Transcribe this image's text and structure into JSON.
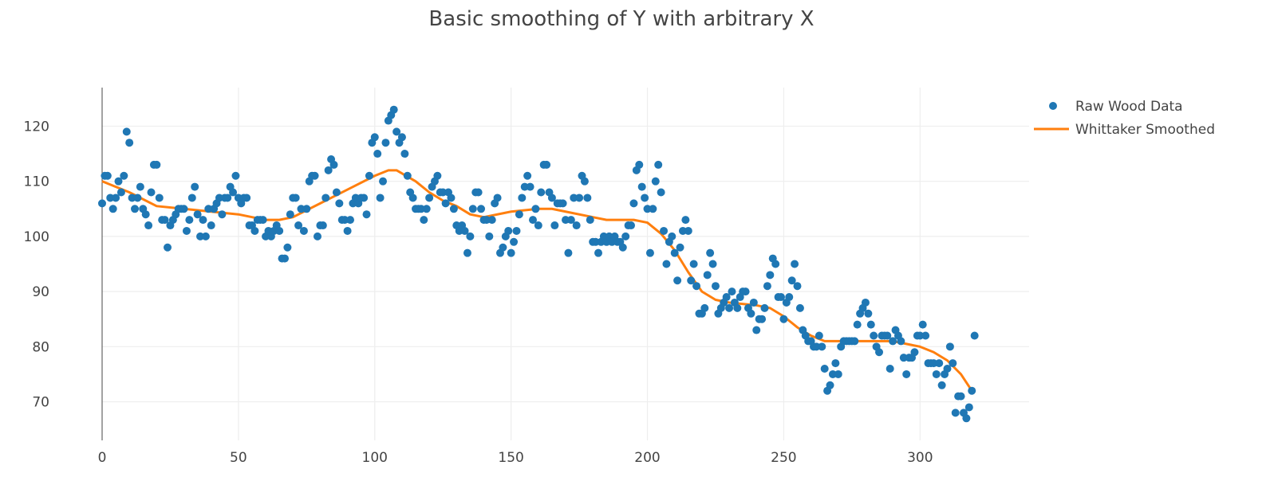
{
  "chart_data": {
    "type": "scatter",
    "title": "Basic smoothing of Y with arbitrary X",
    "xlabel": "",
    "ylabel": "",
    "xlim": [
      0,
      340
    ],
    "ylim": [
      63,
      127
    ],
    "x_ticks": [
      0,
      50,
      100,
      150,
      200,
      250,
      300
    ],
    "y_ticks": [
      70,
      80,
      90,
      100,
      110,
      120
    ],
    "grid": true,
    "legend_position": "top-right",
    "series": [
      {
        "name": "Raw Wood Data",
        "mode": "markers",
        "color": "#1f77b4",
        "x_start": 0,
        "x_step": 1,
        "values": [
          106,
          111,
          111,
          107,
          105,
          107,
          110,
          108,
          111,
          119,
          117,
          107,
          105,
          107,
          109,
          105,
          104,
          102,
          108,
          113,
          113,
          107,
          103,
          103,
          98,
          102,
          103,
          104,
          105,
          105,
          105,
          101,
          103,
          107,
          109,
          104,
          100,
          103,
          100,
          105,
          102,
          105,
          106,
          107,
          104,
          107,
          107,
          109,
          108,
          111,
          107,
          106,
          107,
          107,
          102,
          102,
          101,
          103,
          103,
          103,
          100,
          101,
          100,
          101,
          102,
          101,
          96,
          96,
          98,
          104,
          107,
          107,
          102,
          105,
          101,
          105,
          110,
          111,
          111,
          100,
          102,
          102,
          107,
          112,
          114,
          113,
          108,
          106,
          103,
          103,
          101,
          103,
          106,
          107,
          106,
          107,
          107,
          104,
          111,
          117,
          118,
          115,
          107,
          110,
          117,
          121,
          122,
          123,
          119,
          117,
          118,
          115,
          111,
          108,
          107,
          105,
          105,
          105,
          103,
          105,
          107,
          109,
          110,
          111,
          108,
          108,
          106,
          108,
          107,
          105,
          102,
          101,
          102,
          101,
          97,
          100,
          105,
          108,
          108,
          105,
          103,
          103,
          100,
          103,
          106,
          107,
          97,
          98,
          100,
          101,
          97,
          99,
          101,
          104,
          107,
          109,
          111,
          109,
          103,
          105,
          102,
          108,
          113,
          113,
          108,
          107,
          102,
          106,
          106,
          106,
          103,
          97,
          103,
          107,
          102,
          107,
          111,
          110,
          107,
          103,
          99,
          99,
          97,
          99,
          100,
          99,
          100,
          99,
          100,
          99,
          99,
          98,
          100,
          102,
          102,
          106,
          112,
          113,
          109,
          107,
          105,
          97,
          105,
          110,
          113,
          108,
          101,
          95,
          99,
          100,
          97,
          92,
          98,
          101,
          103,
          101,
          92,
          95,
          91,
          86,
          86,
          87,
          93,
          97,
          95,
          91,
          86,
          87,
          88,
          89,
          87,
          90,
          88,
          87,
          89,
          90,
          90,
          87,
          86,
          88,
          83,
          85,
          85,
          87,
          91,
          93,
          96,
          95,
          89,
          89,
          85,
          88,
          89,
          92,
          95,
          91,
          87,
          83,
          82,
          81,
          81,
          80,
          80,
          82,
          80,
          76,
          72,
          73,
          75,
          77,
          75,
          80,
          81,
          81,
          81,
          81,
          81,
          84,
          86,
          87,
          88,
          86,
          84,
          82,
          80,
          79,
          82,
          82,
          82,
          76,
          81,
          83,
          82,
          81,
          78,
          75,
          78,
          78,
          79,
          82,
          82,
          84,
          82,
          77,
          77,
          77,
          75,
          77,
          73,
          75,
          76,
          80,
          77,
          68,
          71,
          71,
          68,
          67,
          69,
          72,
          82
        ]
      },
      {
        "name": "Whittaker Smoothed",
        "mode": "lines",
        "color": "#ff7f0e",
        "x": [
          0,
          10,
          20,
          30,
          40,
          50,
          55,
          60,
          65,
          70,
          80,
          90,
          100,
          105,
          108,
          115,
          120,
          125,
          130,
          135,
          140,
          150,
          160,
          165,
          170,
          180,
          185,
          190,
          195,
          200,
          205,
          210,
          215,
          220,
          225,
          230,
          240,
          245,
          250,
          255,
          260,
          265,
          270,
          275,
          280,
          285,
          290,
          295,
          300,
          305,
          310,
          315,
          319
        ],
        "y": [
          110,
          108,
          105.5,
          105,
          104.5,
          104,
          103.5,
          103,
          103,
          103.5,
          106,
          108.5,
          111,
          112,
          112,
          110,
          108,
          106.5,
          105.5,
          104,
          103.5,
          104.5,
          105,
          105,
          104.5,
          103.5,
          103,
          103,
          103,
          102.5,
          100.5,
          97.5,
          93.5,
          90,
          88.5,
          88,
          87.5,
          87,
          85.5,
          83.5,
          82,
          81,
          81,
          81,
          81,
          81,
          81,
          80.5,
          80,
          79,
          77.5,
          75,
          72
        ]
      }
    ]
  }
}
